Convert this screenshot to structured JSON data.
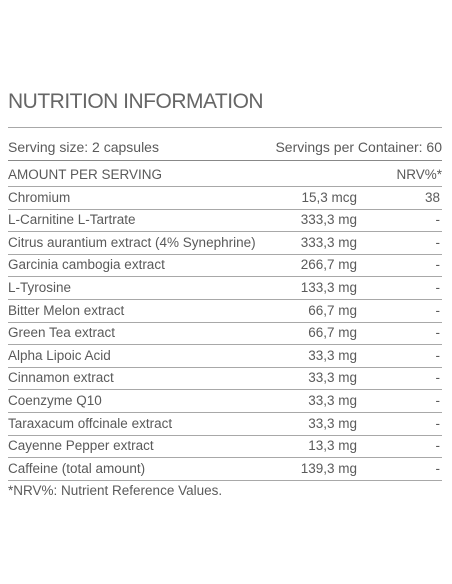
{
  "title": "NUTRITION INFORMATION",
  "serving": {
    "size": "Serving size: 2 capsules",
    "per_container": "Servings per Container: 60"
  },
  "table": {
    "header": [
      "AMOUNT PER SERVING",
      "NRV%*"
    ],
    "rows": [
      [
        "Chromium",
        "15,3 mcg",
        "38"
      ],
      [
        "L-Carnitine L-Tartrate",
        "333,3 mg",
        "-"
      ],
      [
        "Citrus aurantium extract (4% Synephrine)",
        "333,3 mg",
        "-"
      ],
      [
        "Garcinia cambogia extract",
        "266,7 mg",
        "-"
      ],
      [
        "L-Tyrosine",
        "133,3 mg",
        "-"
      ],
      [
        "Bitter Melon extract",
        "66,7 mg",
        "-"
      ],
      [
        "Green Tea extract",
        "66,7 mg",
        "-"
      ],
      [
        "Alpha Lipoic Acid",
        "33,3 mg",
        "-"
      ],
      [
        "Cinnamon extract",
        "33,3 mg",
        "-"
      ],
      [
        "Coenzyme Q10",
        "33,3 mg",
        "-"
      ],
      [
        "Taraxacum offcinale extract",
        "33,3 mg",
        "-"
      ],
      [
        "Cayenne Pepper extract",
        "13,3 mg",
        "-"
      ],
      [
        "Caffeine (total amount)",
        "139,3 mg",
        "-"
      ]
    ]
  },
  "footnote": "*NRV%: Nutrient Reference Values."
}
